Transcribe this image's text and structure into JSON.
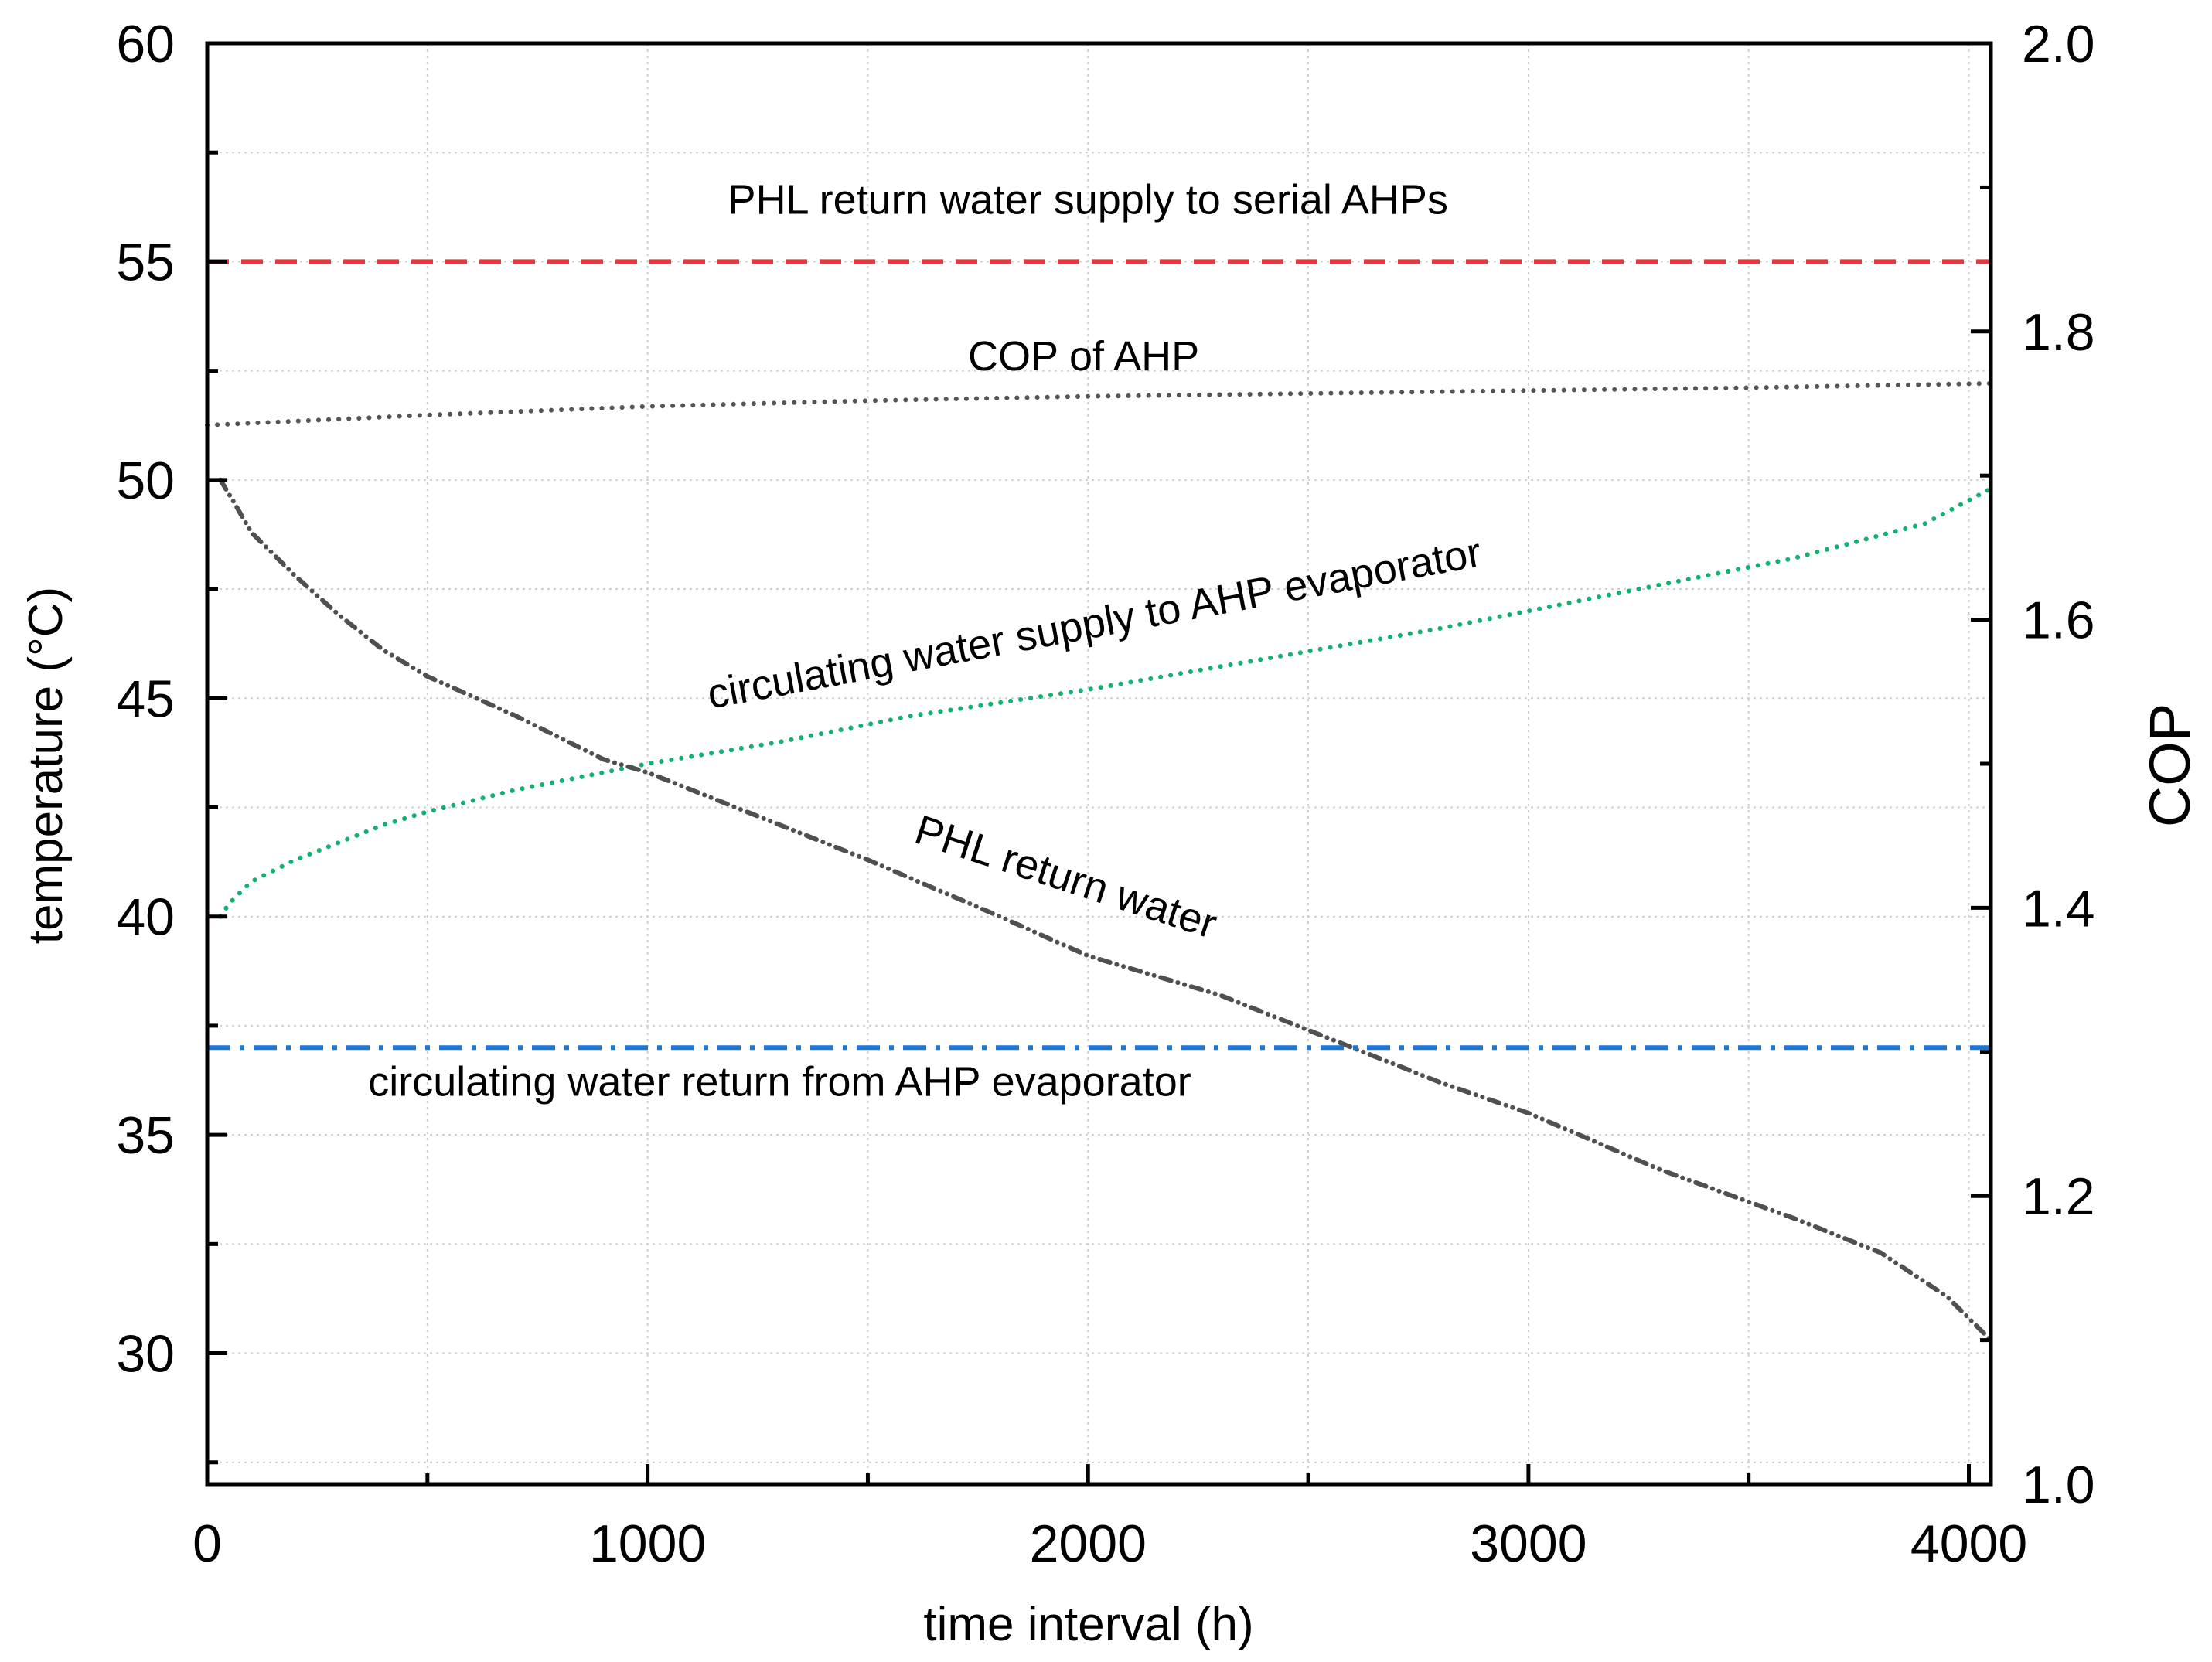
{
  "chart_data": {
    "type": "line",
    "xlabel": "time interval (h)",
    "ylabel": "temperature (°C)",
    "y2label": "COP",
    "xlim": [
      0,
      4050
    ],
    "ylim": [
      27,
      60
    ],
    "y2lim": [
      1.0,
      2.0
    ],
    "grid": true,
    "x_ticks": [
      "0",
      "1000",
      "2000",
      "3000",
      "4000"
    ],
    "y_ticks": [
      "30",
      "35",
      "40",
      "45",
      "50",
      "55",
      "60"
    ],
    "y2_ticks": [
      "1.0",
      "1.2",
      "1.4",
      "1.6",
      "1.8",
      "2.0"
    ],
    "series": [
      {
        "name": "PHL return water supply to serial AHPs",
        "axis": "left",
        "style": "dash",
        "color": "#e8383d",
        "x": [
          0,
          4050
        ],
        "values": [
          55,
          55
        ]
      },
      {
        "name": "COP of AHP",
        "axis": "right",
        "style": "dot",
        "color": "#555555",
        "x": [
          0,
          500,
          1000,
          1500,
          2000,
          2500,
          3000,
          3500,
          4050
        ],
        "values": [
          1.735,
          1.742,
          1.748,
          1.752,
          1.755,
          1.757,
          1.759,
          1.761,
          1.764
        ]
      },
      {
        "name": "circulating water supply to AHP evaporator",
        "axis": "left",
        "style": "dot",
        "color": "#13b071",
        "x": [
          30,
          50,
          100,
          200,
          300,
          400,
          500,
          700,
          1000,
          1300,
          1600,
          2000,
          2400,
          2800,
          3200,
          3600,
          3900,
          4050
        ],
        "values": [
          40.0,
          40.3,
          40.8,
          41.3,
          41.7,
          42.1,
          42.4,
          42.9,
          43.5,
          44.0,
          44.6,
          45.2,
          45.9,
          46.6,
          47.4,
          48.2,
          49.0,
          49.8
        ]
      },
      {
        "name": "PHL return water",
        "axis": "left",
        "style": "dashdotdot",
        "color": "#505050",
        "x": [
          30,
          60,
          100,
          200,
          300,
          400,
          500,
          700,
          900,
          1000,
          1200,
          1500,
          1800,
          2000,
          2300,
          2600,
          2800,
          3000,
          3300,
          3600,
          3800,
          3950,
          4050
        ],
        "values": [
          50.0,
          49.5,
          48.8,
          47.8,
          46.9,
          46.1,
          45.5,
          44.6,
          43.6,
          43.3,
          42.5,
          41.3,
          40.0,
          39.1,
          38.2,
          37.0,
          36.2,
          35.5,
          34.2,
          33.1,
          32.3,
          31.3,
          30.3
        ]
      },
      {
        "name": "circulating water return from AHP evaporator",
        "axis": "left",
        "style": "dashdot",
        "color": "#1b76d9",
        "x": [
          0,
          4050
        ],
        "values": [
          37,
          37
        ]
      }
    ],
    "annotations": [
      {
        "text": "PHL return water supply to serial AHPs",
        "x": 2000,
        "y": 56.1,
        "axis": "left",
        "rotate": 0
      },
      {
        "text": "COP of AHP",
        "x": 1990,
        "y": 1.773,
        "axis": "right",
        "rotate": 0
      },
      {
        "text": "circulating water supply to AHP evaporator",
        "x": 2020,
        "y": 46.4,
        "axis": "left",
        "rotate": -10.5
      },
      {
        "text": "PHL return water",
        "x": 1940,
        "y": 40.6,
        "axis": "left",
        "rotate": 18
      },
      {
        "text": "circulating water return from AHP evaporator",
        "x": 1300,
        "y": 35.9,
        "axis": "left",
        "rotate": 0
      }
    ]
  }
}
